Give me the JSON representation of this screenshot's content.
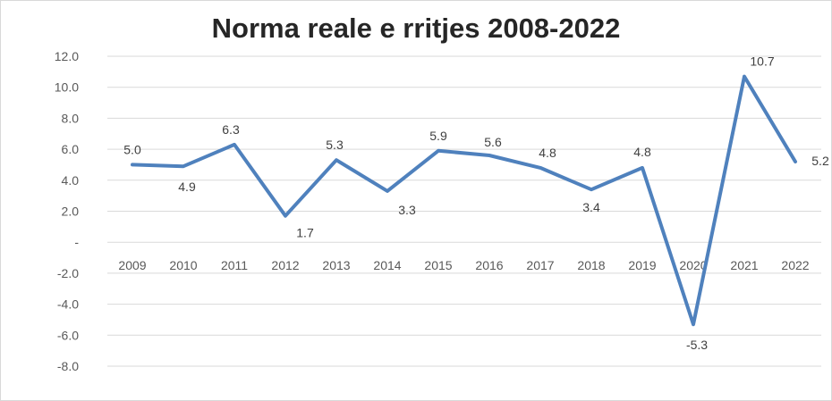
{
  "chart_data": {
    "type": "line",
    "title": "Norma reale e rritjes 2008-2022",
    "categories": [
      "2009",
      "2010",
      "2011",
      "2012",
      "2013",
      "2014",
      "2015",
      "2016",
      "2017",
      "2018",
      "2019",
      "2020",
      "2021",
      "2022"
    ],
    "values": [
      5.0,
      4.9,
      6.3,
      1.7,
      5.3,
      3.3,
      5.9,
      5.6,
      4.8,
      3.4,
      4.8,
      -5.3,
      10.7,
      5.2
    ],
    "data_labels": [
      "5.0",
      "4.9",
      "6.3",
      "1.7",
      "5.3",
      "3.3",
      "5.9",
      "5.6",
      "4.8",
      "3.4",
      "4.8",
      "-5.3",
      "10.7",
      "5.2"
    ],
    "y_ticks": [
      12,
      10,
      8,
      6,
      4,
      2,
      0,
      -2,
      -4,
      -6,
      -8
    ],
    "y_tick_labels": [
      "12.0",
      "10.0",
      "8.0",
      "6.0",
      "4.0",
      "2.0",
      "-",
      "-2.0",
      "-4.0",
      "-6.0",
      "-8.0"
    ],
    "ylim": [
      -8,
      12
    ],
    "grid": true,
    "legend": "none",
    "line_color": "#4f81bd",
    "grid_color": "#d9d9d9"
  }
}
